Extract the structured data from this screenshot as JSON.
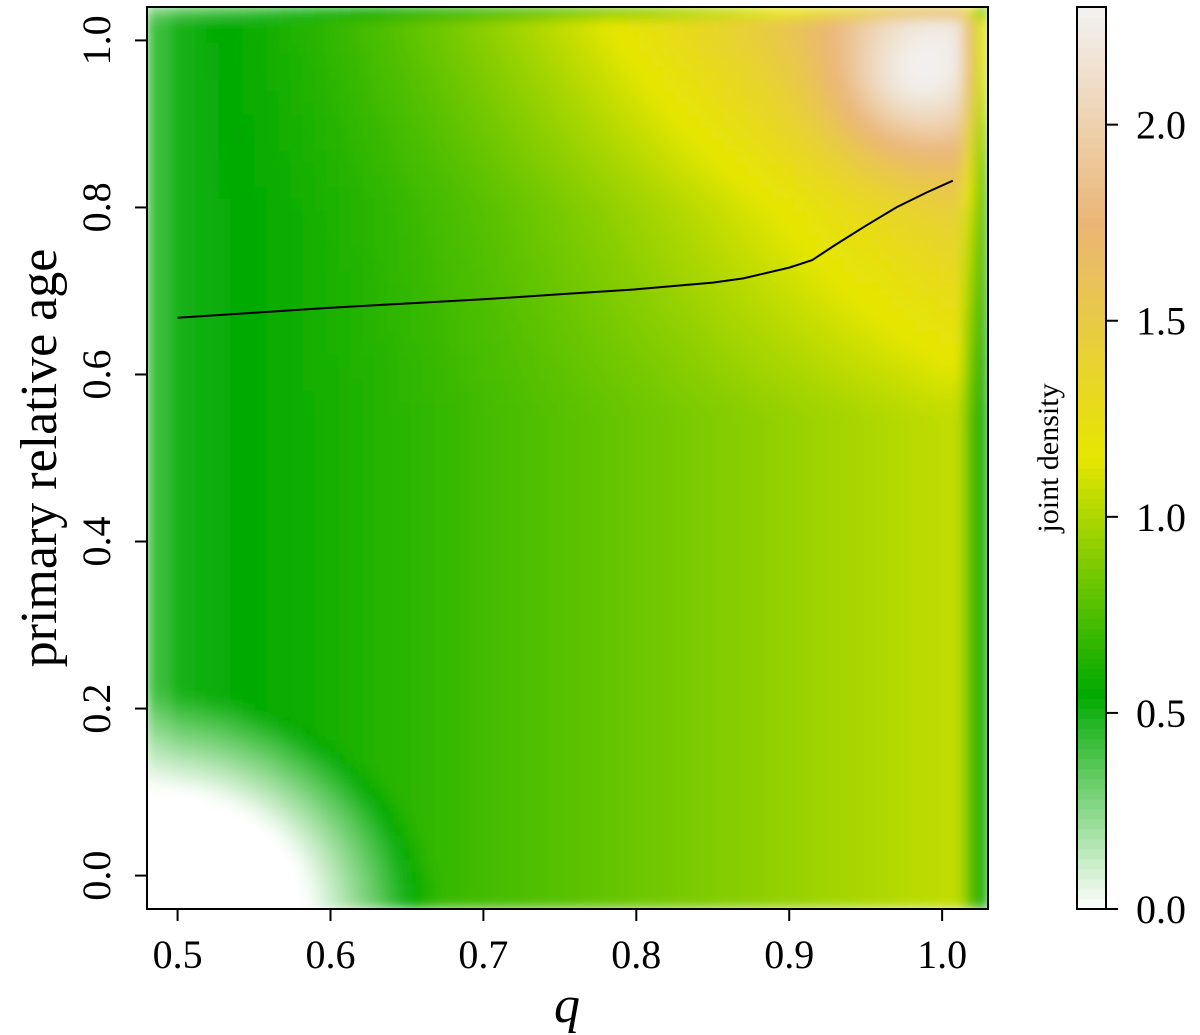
{
  "chart_data": {
    "type": "heatmap",
    "title": "",
    "xlabel": "q",
    "ylabel": "primary relative age",
    "xlim": [
      0.48,
      1.03
    ],
    "ylim": [
      -0.04,
      1.04
    ],
    "x_ticks": [
      "0.5",
      "0.6",
      "0.7",
      "0.8",
      "0.9",
      "1.0"
    ],
    "y_ticks": [
      "0.0",
      "0.2",
      "0.4",
      "0.6",
      "0.8",
      "1.0"
    ],
    "colorbar": {
      "label": "joint density",
      "range": [
        0.0,
        2.3
      ],
      "ticks": [
        "0.0",
        "0.5",
        "1.0",
        "1.5",
        "2.0"
      ],
      "colors": [
        "#ffffff",
        "#00aa00",
        "#e6e600",
        "#eab676",
        "#f2f2f2"
      ]
    },
    "density_features": [
      {
        "description": "low-density corner",
        "q_range": [
          0.48,
          0.68
        ],
        "age_range": [
          -0.04,
          0.2
        ],
        "level": 0.0
      },
      {
        "description": "peak",
        "q": 0.98,
        "age": 0.95,
        "level": 2.2
      }
    ],
    "series": [
      {
        "type": "line",
        "x": [
          0.5,
          0.55,
          0.6,
          0.65,
          0.7,
          0.75,
          0.8,
          0.85,
          0.87,
          0.9,
          0.915,
          0.93,
          0.95,
          0.97,
          0.99,
          1.007
        ],
        "y": [
          0.668,
          0.674,
          0.68,
          0.685,
          0.69,
          0.696,
          0.702,
          0.71,
          0.715,
          0.728,
          0.737,
          0.755,
          0.778,
          0.8,
          0.818,
          0.832
        ]
      }
    ]
  }
}
